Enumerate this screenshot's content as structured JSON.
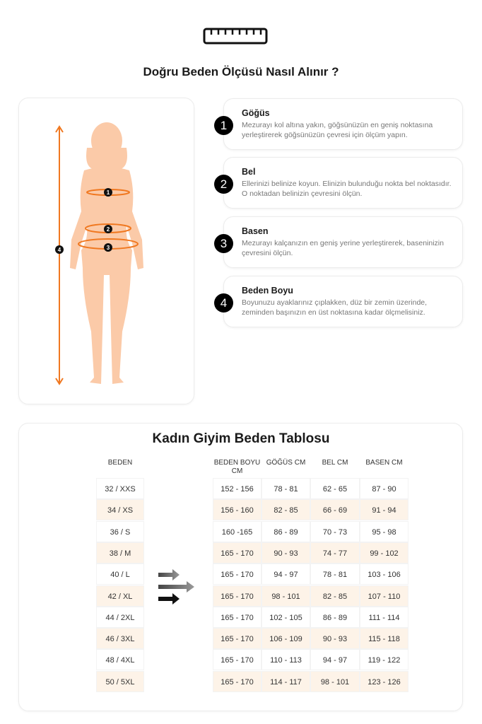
{
  "header": {
    "icon": "ruler-icon",
    "title": "Doğru Beden Ölçüsü Nasıl Alınır ?"
  },
  "figure": {
    "markers": [
      "1",
      "2",
      "3",
      "4"
    ],
    "colors": {
      "skin": "#fbcaa8",
      "measure": "#f07820"
    }
  },
  "steps": [
    {
      "num": "1",
      "title": "Göğüs",
      "text": "Mezurayı kol altına yakın, göğsünüzün en geniş noktasına yerleştirerek göğsünüzün çevresi için ölçüm yapın."
    },
    {
      "num": "2",
      "title": "Bel",
      "text": "Ellerinizi belinize koyun. Elinizin bulunduğu nokta bel noktasıdır. O noktadan belinizin çevresini ölçün."
    },
    {
      "num": "3",
      "title": "Basen",
      "text": "Mezurayı kalçanızın en geniş yerine yerleştirerek, baseninizin çevresini ölçün."
    },
    {
      "num": "4",
      "title": "Beden Boyu",
      "text": "Boyunuzu ayaklarınız çıplakken, düz bir zemin üzerinde, zeminden başınızın en üst noktasına kadar ölçmelisiniz."
    }
  ],
  "table": {
    "title": "Kadın Giyim Beden Tablosu",
    "size_header": "BEDEN",
    "headers": [
      "BEDEN BOYU CM",
      "GÖĞÜS CM",
      "BEL CM",
      "BASEN CM"
    ],
    "sizes": [
      "32 / XXS",
      "34 / XS",
      "36 / S",
      "38 / M",
      "40 / L",
      "42 / XL",
      "44 / 2XL",
      "46 / 3XL",
      "48 / 4XL",
      "50 / 5XL"
    ],
    "rows": [
      [
        "152 - 156",
        "78 - 81",
        "62 - 65",
        "87 - 90"
      ],
      [
        "156 - 160",
        "82 - 85",
        "66 - 69",
        "91 - 94"
      ],
      [
        "160 -165",
        "86 - 89",
        "70 - 73",
        "95 - 98"
      ],
      [
        "165 - 170",
        "90 - 93",
        "74 - 77",
        "99 - 102"
      ],
      [
        "165 - 170",
        "94 - 97",
        "78 - 81",
        "103 - 106"
      ],
      [
        "165 - 170",
        "98 - 101",
        "82 - 85",
        "107 - 110"
      ],
      [
        "165 - 170",
        "102 - 105",
        "86 - 89",
        "111 - 114"
      ],
      [
        "165 - 170",
        "106 - 109",
        "90 - 93",
        "115 - 118"
      ],
      [
        "165 - 170",
        "110 - 113",
        "94 - 97",
        "119 - 122"
      ],
      [
        "165 - 170",
        "114 - 117",
        "98 - 101",
        "123 - 126"
      ]
    ],
    "alt_row_color": "#fdf3e8"
  }
}
